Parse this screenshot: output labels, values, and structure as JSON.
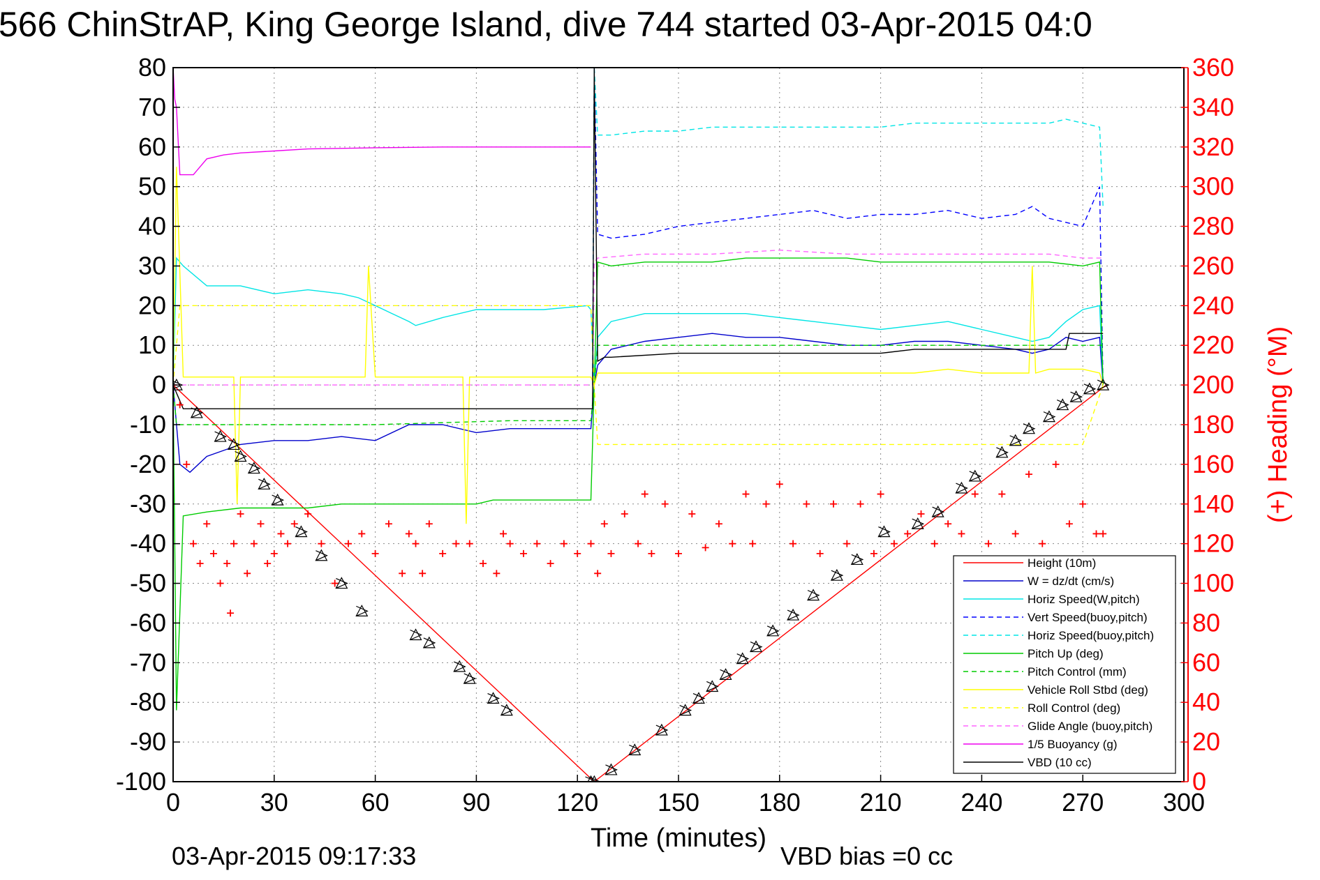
{
  "chart_data": {
    "type": "line",
    "title": "566 ChinStrAP, King George Island, dive 744 started 03-Apr-2015 04:0",
    "xlabel": "Time (minutes)",
    "ylabel": "",
    "ylabel_right": "(+) Heading (°M)",
    "xlim": [
      0,
      300
    ],
    "ylim": [
      -100,
      80
    ],
    "ylim_right": [
      0,
      360
    ],
    "x_ticks": [
      "0",
      "30",
      "60",
      "90",
      "120",
      "150",
      "180",
      "210",
      "240",
      "270",
      "300"
    ],
    "y_ticks": [
      "-100",
      "-90",
      "-80",
      "-70",
      "-60",
      "-50",
      "-40",
      "-30",
      "-20",
      "-10",
      "0",
      "10",
      "20",
      "30",
      "40",
      "50",
      "60",
      "70",
      "80"
    ],
    "y_ticks_right": [
      "0",
      "20",
      "40",
      "60",
      "80",
      "100",
      "120",
      "140",
      "160",
      "180",
      "200",
      "220",
      "240",
      "260",
      "280",
      "300",
      "320",
      "340",
      "360"
    ],
    "grid": true,
    "legend_position": "bottom-right",
    "footer_left": "03-Apr-2015 09:17:33",
    "footer_right": "VBD bias =0 cc",
    "series": [
      {
        "name": "Height (10m)",
        "color": "#ff0000",
        "style": "solid",
        "x": [
          0,
          125,
          277
        ],
        "y": [
          0,
          -100,
          0
        ]
      },
      {
        "name": "W = dz/dt (cm/s)",
        "color": "#0000cc",
        "style": "solid",
        "x": [
          0,
          2,
          5,
          10,
          20,
          30,
          40,
          50,
          60,
          70,
          80,
          90,
          100,
          110,
          123,
          124,
          125,
          126,
          130,
          140,
          150,
          160,
          170,
          180,
          190,
          200,
          210,
          220,
          230,
          240,
          250,
          255,
          260,
          265,
          270,
          275,
          276
        ],
        "y": [
          0,
          -20,
          -22,
          -18,
          -15,
          -14,
          -14,
          -13,
          -14,
          -10,
          -10,
          -12,
          -11,
          -11,
          -11,
          -11,
          0,
          5,
          9,
          11,
          12,
          13,
          12,
          12,
          11,
          10,
          10,
          11,
          11,
          10,
          9,
          8,
          9,
          12,
          11,
          12,
          0
        ]
      },
      {
        "name": "Horiz Speed(W,pitch)",
        "color": "#00e5e5",
        "style": "solid",
        "x": [
          0,
          1,
          3,
          10,
          20,
          30,
          40,
          50,
          55,
          60,
          65,
          70,
          72,
          80,
          90,
          100,
          110,
          123,
          124,
          125,
          126,
          130,
          140,
          150,
          160,
          170,
          180,
          190,
          200,
          210,
          220,
          230,
          240,
          250,
          255,
          260,
          265,
          270,
          275,
          276
        ],
        "y": [
          0,
          32,
          30,
          25,
          25,
          23,
          24,
          23,
          22,
          20,
          18,
          16,
          15,
          17,
          19,
          19,
          19,
          20,
          19,
          0,
          12,
          16,
          18,
          18,
          18,
          18,
          17,
          16,
          15,
          14,
          15,
          16,
          14,
          12,
          11,
          12,
          16,
          19,
          20,
          0
        ]
      },
      {
        "name": "Vert Speed(buoy,pitch)",
        "color": "#0000ff",
        "style": "dashed",
        "x": [
          124.5,
          125,
          126,
          130,
          140,
          150,
          160,
          170,
          180,
          190,
          200,
          210,
          220,
          230,
          240,
          250,
          255,
          260,
          265,
          270,
          275,
          276
        ],
        "y": [
          0,
          80,
          38,
          37,
          38,
          40,
          41,
          42,
          43,
          44,
          42,
          43,
          43,
          44,
          42,
          43,
          45,
          42,
          41,
          40,
          50,
          0
        ]
      },
      {
        "name": "Horiz Speed(buoy,pitch)",
        "color": "#00e5e5",
        "style": "dashed",
        "x": [
          124.5,
          125,
          126,
          130,
          140,
          150,
          160,
          170,
          180,
          190,
          200,
          210,
          220,
          230,
          240,
          250,
          260,
          265,
          270,
          275,
          276
        ],
        "y": [
          0,
          80,
          63,
          63,
          64,
          64,
          65,
          65,
          65,
          65,
          65,
          65,
          66,
          66,
          66,
          66,
          66,
          67,
          66,
          65,
          45
        ]
      },
      {
        "name": "Pitch Up (deg)",
        "color": "#00cc00",
        "style": "solid",
        "x": [
          0,
          1,
          3,
          10,
          20,
          30,
          40,
          50,
          60,
          70,
          80,
          90,
          95,
          100,
          110,
          123,
          124,
          125,
          126,
          130,
          140,
          150,
          160,
          170,
          180,
          190,
          200,
          210,
          220,
          230,
          240,
          250,
          260,
          270,
          275,
          276
        ],
        "y": [
          0,
          -82,
          -33,
          -32,
          -31,
          -31,
          -31,
          -30,
          -30,
          -30,
          -30,
          -30,
          -29,
          -29,
          -29,
          -29,
          -29,
          0,
          31,
          30,
          31,
          31,
          31,
          32,
          32,
          32,
          32,
          31,
          31,
          31,
          31,
          31,
          31,
          30,
          31,
          0
        ]
      },
      {
        "name": "Pitch Control (mm)",
        "color": "#00cc00",
        "style": "dashed",
        "x": [
          0,
          1,
          3,
          20,
          60,
          100,
          123,
          124,
          125,
          126,
          140,
          160,
          180,
          200,
          220,
          240,
          260,
          276
        ],
        "y": [
          0,
          -10,
          -10,
          -10,
          -10,
          -9,
          -9,
          -9,
          0,
          10,
          10,
          10,
          10,
          10,
          10,
          10,
          10,
          10
        ]
      },
      {
        "name": "Vehicle Roll Stbd (deg)",
        "color": "#ffff00",
        "style": "solid",
        "x": [
          0,
          1,
          3,
          10,
          18,
          19,
          20,
          30,
          40,
          57,
          58,
          60,
          80,
          86,
          87,
          88,
          100,
          110,
          123,
          124,
          125,
          126,
          130,
          140,
          150,
          160,
          170,
          180,
          190,
          200,
          210,
          220,
          230,
          240,
          250,
          254,
          255,
          256,
          260,
          270,
          275,
          276
        ],
        "y": [
          0,
          55,
          2,
          2,
          2,
          -30,
          2,
          2,
          2,
          2,
          30,
          2,
          2,
          2,
          -35,
          2,
          2,
          2,
          2,
          2,
          0,
          3,
          3,
          3,
          3,
          3,
          3,
          3,
          3,
          3,
          3,
          3,
          4,
          3,
          3,
          3,
          30,
          3,
          4,
          4,
          3,
          0
        ]
      },
      {
        "name": "Roll Control (deg)",
        "color": "#ffff00",
        "style": "dashed",
        "x": [
          0,
          2,
          10,
          20,
          30,
          60,
          90,
          120,
          124,
          125,
          126,
          140,
          160,
          180,
          200,
          220,
          240,
          260,
          270,
          276
        ],
        "y": [
          0,
          20,
          20,
          20,
          20,
          20,
          20,
          20,
          20,
          0,
          -15,
          -15,
          -15,
          -15,
          -15,
          -15,
          -15,
          -15,
          -15,
          0
        ]
      },
      {
        "name": "Glide Angle (buoy,pitch)",
        "color": "#ff66ff",
        "style": "dashed",
        "x": [
          0,
          30,
          60,
          90,
          124,
          124.5,
          125,
          126,
          140,
          160,
          180,
          200,
          220,
          240,
          260,
          270,
          276
        ],
        "y": [
          0,
          0,
          0,
          0,
          0,
          0,
          31,
          32,
          33,
          33,
          34,
          33,
          33,
          33,
          33,
          32,
          32
        ]
      },
      {
        "name": "1/5 Buoyancy (g)",
        "color": "#ee00ee",
        "style": "solid",
        "x": [
          0,
          0.5,
          1,
          2,
          5,
          6,
          8,
          10,
          15,
          20,
          30,
          40,
          60,
          80,
          100,
          110,
          123,
          124
        ],
        "y": [
          80,
          72,
          70,
          53,
          53,
          53,
          55,
          57,
          58,
          58.5,
          59,
          59.5,
          59.8,
          60,
          60,
          60,
          60,
          60
        ]
      },
      {
        "name": "VBD (10 cc)",
        "color": "#000000",
        "style": "solid",
        "x": [
          0,
          3,
          4,
          124,
          124.5,
          125,
          126,
          128,
          130,
          150,
          180,
          210,
          220,
          250,
          260,
          265,
          266,
          276
        ],
        "y": [
          0,
          -6,
          -6,
          -6,
          -6,
          80,
          6,
          7,
          7,
          8,
          8,
          8,
          9,
          9,
          9,
          9,
          13,
          13
        ]
      }
    ],
    "heading_series": {
      "name": "(+) Heading",
      "color": "#ff0000",
      "marker": "+",
      "x": [
        0,
        2,
        4,
        6,
        8,
        10,
        12,
        14,
        16,
        17,
        18,
        20,
        22,
        24,
        26,
        28,
        30,
        32,
        34,
        36,
        40,
        44,
        48,
        52,
        56,
        60,
        64,
        68,
        70,
        72,
        74,
        76,
        80,
        84,
        88,
        92,
        96,
        98,
        100,
        104,
        108,
        112,
        116,
        120,
        124,
        126,
        128,
        130,
        134,
        138,
        140,
        142,
        146,
        150,
        154,
        158,
        162,
        166,
        170,
        172,
        176,
        180,
        184,
        188,
        192,
        196,
        200,
        204,
        208,
        210,
        214,
        218,
        222,
        226,
        230,
        234,
        238,
        242,
        246,
        250,
        254,
        258,
        262,
        266,
        270,
        274,
        276
      ],
      "y": [
        200,
        190,
        160,
        120,
        110,
        130,
        115,
        100,
        110,
        85,
        120,
        135,
        105,
        120,
        130,
        110,
        115,
        125,
        120,
        130,
        135,
        120,
        100,
        120,
        125,
        115,
        130,
        105,
        125,
        120,
        105,
        130,
        115,
        120,
        120,
        110,
        105,
        125,
        120,
        115,
        120,
        110,
        120,
        115,
        120,
        105,
        130,
        115,
        135,
        120,
        145,
        115,
        140,
        115,
        135,
        118,
        130,
        120,
        145,
        120,
        140,
        150,
        120,
        140,
        115,
        140,
        120,
        140,
        115,
        145,
        120,
        125,
        135,
        120,
        130,
        125,
        145,
        120,
        145,
        125,
        155,
        120,
        160,
        130,
        140,
        125,
        125
      ]
    },
    "markers_series": {
      "name": "Height markers",
      "color": "#000000",
      "marker": "triangle",
      "x": [
        1,
        7,
        14,
        18,
        20,
        24,
        27,
        31,
        38,
        44,
        50,
        56,
        72,
        76,
        85,
        88,
        95,
        99,
        124,
        125,
        130,
        137,
        145,
        152,
        156,
        160,
        164,
        169,
        173,
        178,
        184,
        190,
        197,
        203,
        211,
        221,
        227,
        234,
        238,
        246,
        250,
        254,
        260,
        264,
        268,
        272,
        276
      ],
      "y": [
        0,
        -7,
        -13,
        -15,
        -18,
        -21,
        -25,
        -29,
        -37,
        -43,
        -50,
        -57,
        -63,
        -65,
        -71,
        -74,
        -79,
        -82,
        -100,
        -100,
        -97,
        -92,
        -87,
        -82,
        -79,
        -76,
        -73,
        -69,
        -66,
        -62,
        -58,
        -53,
        -48,
        -44,
        -37,
        -35,
        -32,
        -26,
        -23,
        -17,
        -14,
        -11,
        -8,
        -5,
        -3,
        -1,
        0
      ]
    }
  }
}
